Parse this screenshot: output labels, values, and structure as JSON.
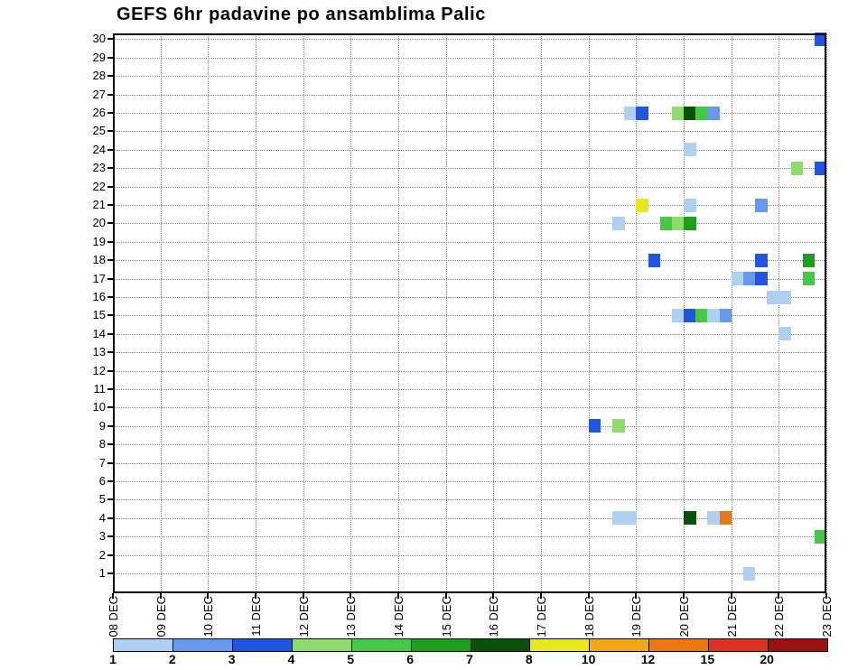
{
  "title": "GEFS 6hr padavine po ansamblima Palic",
  "chart_data": {
    "type": "heatmap",
    "title": "GEFS 6hr padavine po ansamblima Palic",
    "x_categories": [
      "08 DEC",
      "09 DEC",
      "10 DEC",
      "11 DEC",
      "12 DEC",
      "13 DEC",
      "14 DEC",
      "15 DEC",
      "16 DEC",
      "17 DEC",
      "18 DEC",
      "19 DEC",
      "20 DEC",
      "21 DEC",
      "22 DEC",
      "23 DEC"
    ],
    "slots_per_day": 4,
    "y_members": [
      "1",
      "2",
      "3",
      "4",
      "5",
      "6",
      "7",
      "8",
      "9",
      "10",
      "11",
      "12",
      "13",
      "14",
      "15",
      "16",
      "17",
      "18",
      "19",
      "20",
      "21",
      "22",
      "23",
      "24",
      "25",
      "26",
      "27",
      "28",
      "29",
      "30"
    ],
    "grid": true,
    "legend": {
      "position": "bottom",
      "labels": [
        "1",
        "2",
        "3",
        "4",
        "5",
        "6",
        "7",
        "8",
        "10",
        "12",
        "15",
        "20"
      ],
      "colors": [
        "#b0d0f2",
        "#6699ee",
        "#2255dd",
        "#8edc6e",
        "#46c846",
        "#1e9e1e",
        "#0a500a",
        "#e8e820",
        "#f0a818",
        "#ee7711",
        "#dd3322",
        "#991111"
      ]
    },
    "encoding": "m = ensemble member (y-axis), s = 6-hour slot index counted from 08 DEC 00h (x-axis), c = index into legend.colors",
    "cells": [
      {
        "m": 30,
        "s": 59,
        "c": 2
      },
      {
        "m": 26,
        "s": 43,
        "c": 0
      },
      {
        "m": 26,
        "s": 44,
        "c": 2
      },
      {
        "m": 26,
        "s": 47,
        "c": 3
      },
      {
        "m": 26,
        "s": 48,
        "c": 6
      },
      {
        "m": 26,
        "s": 49,
        "c": 4
      },
      {
        "m": 26,
        "s": 50,
        "c": 1
      },
      {
        "m": 24,
        "s": 48,
        "c": 0
      },
      {
        "m": 23,
        "s": 57,
        "c": 3
      },
      {
        "m": 23,
        "s": 59,
        "c": 2
      },
      {
        "m": 21,
        "s": 44,
        "c": 7
      },
      {
        "m": 21,
        "s": 48,
        "c": 0
      },
      {
        "m": 21,
        "s": 54,
        "c": 1
      },
      {
        "m": 20,
        "s": 42,
        "c": 0
      },
      {
        "m": 20,
        "s": 46,
        "c": 4
      },
      {
        "m": 20,
        "s": 47,
        "c": 3
      },
      {
        "m": 20,
        "s": 48,
        "c": 5
      },
      {
        "m": 18,
        "s": 45,
        "c": 2
      },
      {
        "m": 18,
        "s": 54,
        "c": 2
      },
      {
        "m": 18,
        "s": 58,
        "c": 5
      },
      {
        "m": 17,
        "s": 52,
        "c": 0
      },
      {
        "m": 17,
        "s": 53,
        "c": 1
      },
      {
        "m": 17,
        "s": 54,
        "c": 2
      },
      {
        "m": 17,
        "s": 58,
        "c": 4
      },
      {
        "m": 16,
        "s": 55,
        "c": 0
      },
      {
        "m": 16,
        "s": 56,
        "c": 0
      },
      {
        "m": 15,
        "s": 47,
        "c": 0
      },
      {
        "m": 15,
        "s": 48,
        "c": 2
      },
      {
        "m": 15,
        "s": 49,
        "c": 4
      },
      {
        "m": 15,
        "s": 50,
        "c": 0
      },
      {
        "m": 15,
        "s": 51,
        "c": 1
      },
      {
        "m": 14,
        "s": 56,
        "c": 0
      },
      {
        "m": 9,
        "s": 40,
        "c": 2
      },
      {
        "m": 9,
        "s": 42,
        "c": 3
      },
      {
        "m": 4,
        "s": 42,
        "c": 0
      },
      {
        "m": 4,
        "s": 43,
        "c": 0
      },
      {
        "m": 4,
        "s": 48,
        "c": 6
      },
      {
        "m": 4,
        "s": 50,
        "c": 0
      },
      {
        "m": 4,
        "s": 51,
        "c": 9
      },
      {
        "m": 3,
        "s": 59,
        "c": 4
      },
      {
        "m": 1,
        "s": 53,
        "c": 0
      }
    ]
  }
}
